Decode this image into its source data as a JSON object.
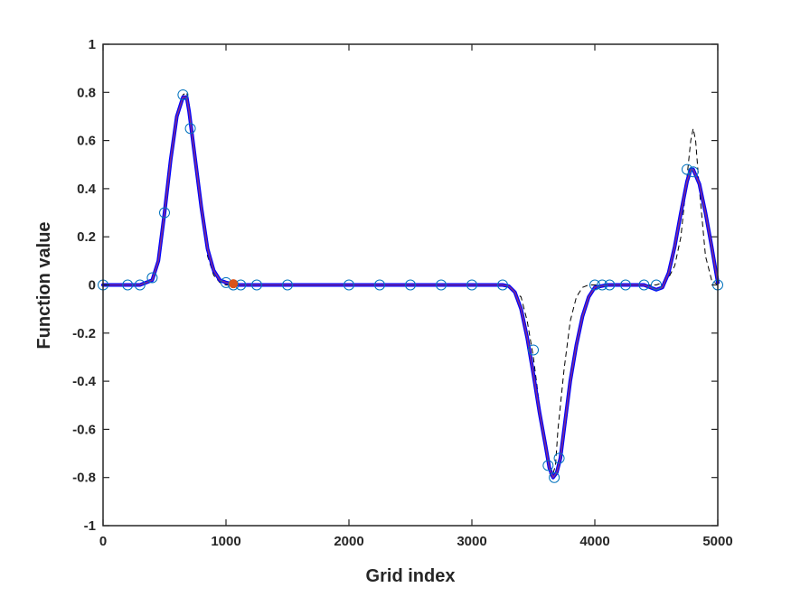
{
  "chart_data": {
    "type": "line",
    "title": "",
    "xlabel": "Grid index",
    "ylabel": "Function value",
    "xlim": [
      0,
      5000
    ],
    "ylim": [
      -1,
      1
    ],
    "xticks": [
      0,
      1000,
      2000,
      3000,
      4000,
      5000
    ],
    "yticks": [
      -1,
      -0.8,
      -0.6,
      -0.4,
      -0.2,
      0,
      0.2,
      0.4,
      0.6,
      0.8,
      1
    ],
    "grid": false,
    "legend": "none",
    "colors": {
      "frame": "#262626",
      "reference_curve": "#000000",
      "fit_outer": "#0000ff",
      "fit_inner": "#7e2f8e",
      "markers": "#0072bd",
      "highlight": "#d95319"
    },
    "series": [
      {
        "style": "dashed-black-thin",
        "x": [
          0,
          200,
          300,
          400,
          450,
          500,
          550,
          600,
          650,
          680,
          700,
          750,
          800,
          850,
          900,
          950,
          1000,
          1050,
          1100,
          1200,
          1500,
          2000,
          2500,
          3000,
          3200,
          3300,
          3400,
          3450,
          3500,
          3550,
          3600,
          3630,
          3650,
          3680,
          3700,
          3750,
          3800,
          3850,
          3900,
          3950,
          4000,
          4200,
          4400,
          4500,
          4550,
          4600,
          4650,
          4700,
          4750,
          4780,
          4800,
          4820,
          4850,
          4900,
          4950,
          5000
        ],
        "y": [
          0,
          0,
          0,
          0.02,
          0.1,
          0.3,
          0.52,
          0.7,
          0.79,
          0.8,
          0.75,
          0.5,
          0.3,
          0.12,
          0.04,
          0.01,
          0,
          0,
          0,
          0,
          0,
          0,
          0,
          0,
          0,
          -0.01,
          -0.05,
          -0.15,
          -0.3,
          -0.5,
          -0.7,
          -0.78,
          -0.8,
          -0.75,
          -0.6,
          -0.35,
          -0.15,
          -0.05,
          -0.01,
          0,
          0,
          0,
          0,
          0,
          0.01,
          0.03,
          0.08,
          0.2,
          0.45,
          0.6,
          0.65,
          0.6,
          0.4,
          0.12,
          0.02,
          0
        ]
      },
      {
        "style": "solid-blue-thick",
        "x": [
          0,
          200,
          300,
          400,
          450,
          500,
          550,
          600,
          650,
          680,
          700,
          750,
          800,
          850,
          900,
          950,
          1000,
          1050,
          1100,
          1200,
          1500,
          2000,
          2500,
          3000,
          3250,
          3300,
          3350,
          3400,
          3450,
          3500,
          3550,
          3600,
          3630,
          3660,
          3690,
          3720,
          3750,
          3800,
          3850,
          3900,
          3950,
          4000,
          4100,
          4250,
          4400,
          4450,
          4500,
          4550,
          4600,
          4650,
          4700,
          4750,
          4780,
          4800,
          4850,
          4900,
          4950,
          5000
        ],
        "y": [
          0,
          0,
          0,
          0.02,
          0.1,
          0.3,
          0.52,
          0.7,
          0.78,
          0.78,
          0.72,
          0.52,
          0.32,
          0.15,
          0.06,
          0.02,
          0.01,
          0.005,
          0,
          0,
          0,
          0,
          0,
          0,
          0,
          -0.005,
          -0.03,
          -0.1,
          -0.22,
          -0.37,
          -0.53,
          -0.67,
          -0.76,
          -0.8,
          -0.78,
          -0.72,
          -0.6,
          -0.4,
          -0.25,
          -0.13,
          -0.05,
          -0.01,
          0,
          0,
          0,
          -0.01,
          -0.02,
          -0.01,
          0.05,
          0.16,
          0.3,
          0.43,
          0.48,
          0.48,
          0.42,
          0.3,
          0.16,
          0.01
        ]
      }
    ],
    "markers": {
      "style": "open-circles",
      "x": [
        0,
        200,
        300,
        400,
        500,
        650,
        710,
        1000,
        1060,
        1120,
        1250,
        1500,
        2000,
        2250,
        2500,
        2750,
        3000,
        3250,
        3500,
        3620,
        3670,
        3710,
        4000,
        4060,
        4120,
        4250,
        4400,
        4500,
        4750,
        4800,
        5000
      ],
      "y": [
        0,
        0,
        0,
        0.03,
        0.3,
        0.79,
        0.65,
        0.01,
        0,
        0,
        0,
        0,
        0,
        0,
        0,
        0,
        0,
        0,
        -0.27,
        -0.75,
        -0.8,
        -0.72,
        0,
        0,
        0,
        0,
        0,
        0,
        0.48,
        0.47,
        0
      ]
    },
    "highlight_point": {
      "x": 1060,
      "y": 0.005
    }
  }
}
